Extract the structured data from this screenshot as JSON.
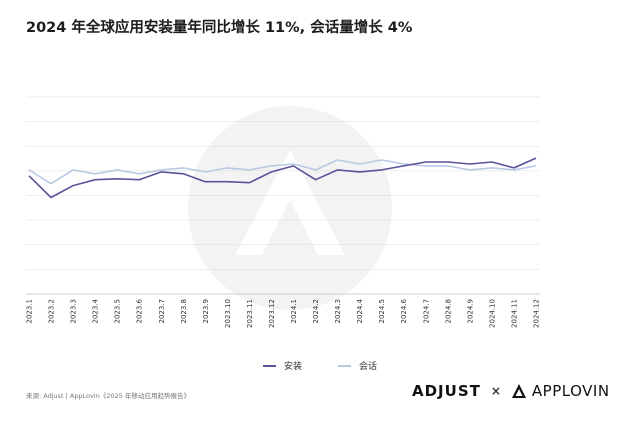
{
  "title": "2024 年全球应用安装量年同比增长 11%, 会话量增长 4%",
  "source": "来源: Adjust | AppLovin《2025 年移动应用趋势报告》",
  "logos": {
    "adjust": "ADJUST",
    "separator": "×",
    "applovin": "APPLOVIN"
  },
  "colors": {
    "installs": "#5b539a",
    "sessions": "#b9c9e4",
    "grid": "#dcdcdc",
    "watermark": "#f3f3f3"
  },
  "chart_data": {
    "type": "line",
    "title": "2024 年全球应用安装量年同比增长 11%, 会话量增长 4%",
    "xlabel": "",
    "ylabel": "",
    "grid": true,
    "y_axis_labels": false,
    "ylim": [
      0,
      100
    ],
    "legend_position": "bottom-center",
    "categories": [
      "2023.1",
      "2023.2",
      "2023.3",
      "2023.4",
      "2023.5",
      "2023.6",
      "2023.7",
      "2023.8",
      "2023.9",
      "2023.10",
      "2023.11",
      "2023.12",
      "2024.1",
      "2024.2",
      "2024.3",
      "2024.4",
      "2024.5",
      "2024.6",
      "2024.7",
      "2024.8",
      "2024.9",
      "2024.10",
      "2024.11",
      "2024.12"
    ],
    "series": [
      {
        "name": "安装",
        "color": "#5b539a",
        "values": [
          60,
          49,
          55,
          58,
          58.5,
          58,
          62,
          61,
          57,
          57,
          56.5,
          62,
          65,
          58,
          63,
          62,
          63,
          65,
          67,
          67,
          66,
          67,
          64,
          69
        ]
      },
      {
        "name": "会话",
        "color": "#b9c9e4",
        "values": [
          63,
          56,
          63,
          61,
          63,
          61,
          63,
          64,
          62,
          64,
          63,
          65,
          66,
          63,
          68,
          66,
          68,
          66,
          65,
          65,
          63,
          64,
          63,
          65
        ]
      }
    ]
  }
}
